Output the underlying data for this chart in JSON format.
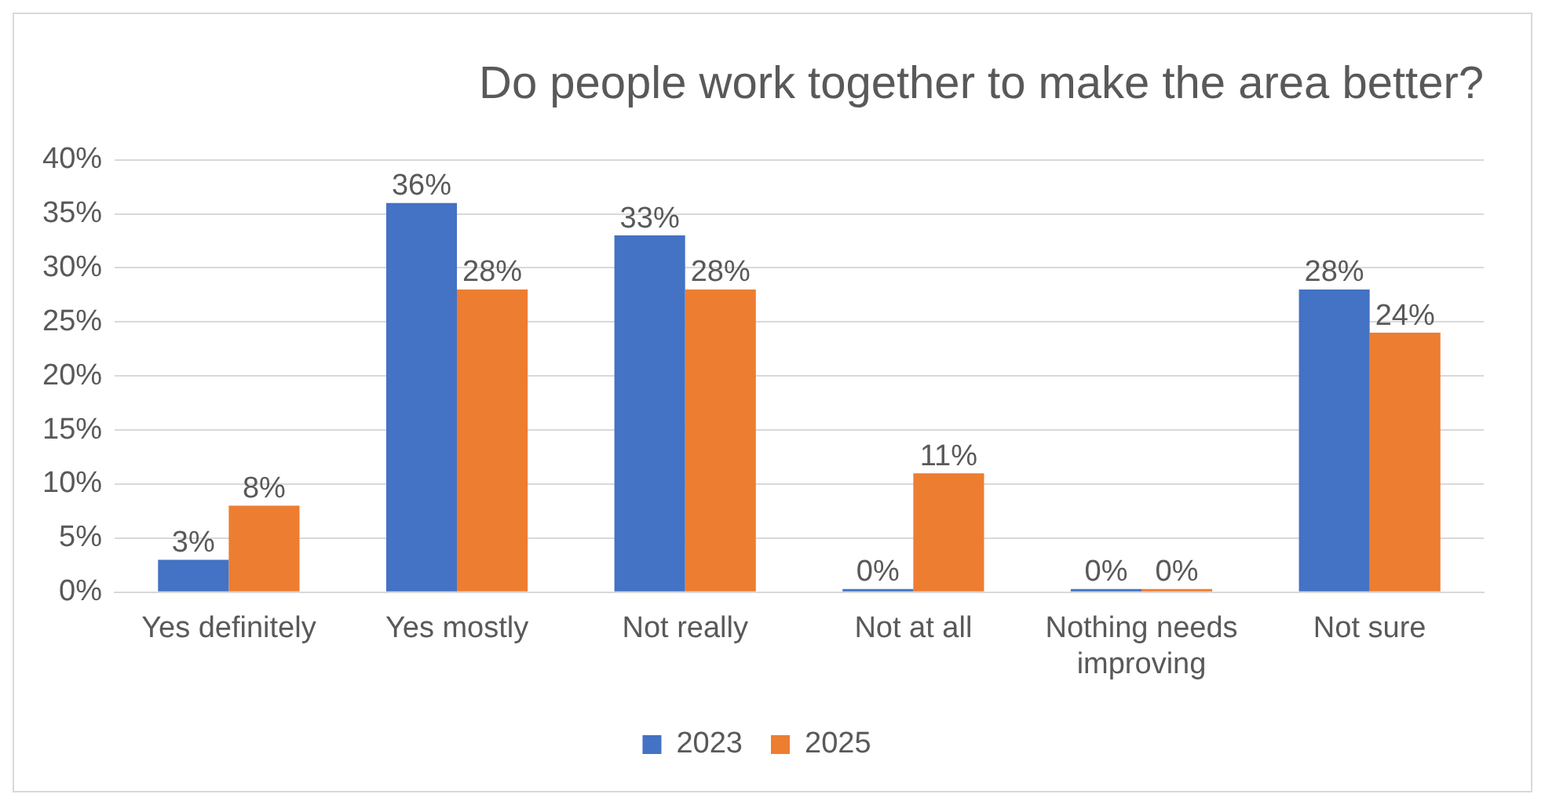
{
  "chart_data": {
    "type": "bar",
    "title": "Do people work together to make the area better?",
    "categories": [
      "Yes definitely",
      "Yes mostly",
      "Not really",
      "Not at all",
      "Nothing needs improving",
      "Not sure"
    ],
    "series": [
      {
        "name": "2023",
        "color": "#4472c4",
        "values": [
          3,
          36,
          33,
          0,
          0,
          28
        ],
        "value_labels": [
          "3%",
          "36%",
          "33%",
          "0%",
          "0%",
          "28%"
        ]
      },
      {
        "name": "2025",
        "color": "#ed7d31",
        "values": [
          8,
          28,
          28,
          11,
          0,
          24
        ],
        "value_labels": [
          "8%",
          "28%",
          "28%",
          "11%",
          "0%",
          "24%"
        ]
      }
    ],
    "ylim": [
      0,
      40
    ],
    "yticks": [
      {
        "value": 0,
        "label": "0%"
      },
      {
        "value": 5,
        "label": "5%"
      },
      {
        "value": 10,
        "label": "10%"
      },
      {
        "value": 15,
        "label": "15%"
      },
      {
        "value": 20,
        "label": "20%"
      },
      {
        "value": 25,
        "label": "25%"
      },
      {
        "value": 30,
        "label": "30%"
      },
      {
        "value": 35,
        "label": "35%"
      },
      {
        "value": 40,
        "label": "40%"
      }
    ],
    "grid": "y",
    "legend": "bottom"
  }
}
